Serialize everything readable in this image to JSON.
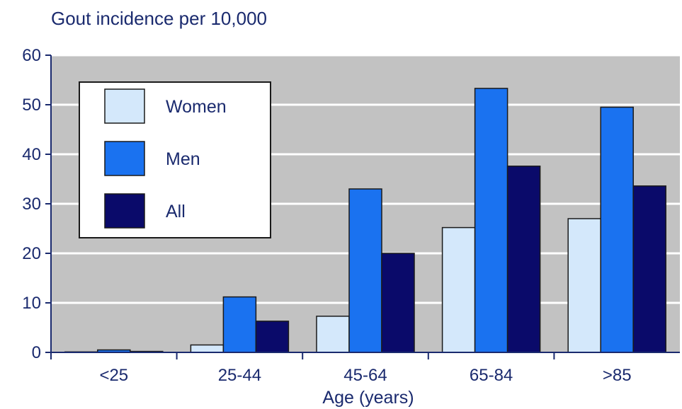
{
  "chart_data": {
    "type": "bar",
    "title": "Gout incidence per 10,000",
    "xlabel": "Age (years)",
    "ylabel": "",
    "ylim": [
      0,
      60
    ],
    "yticks": [
      0,
      10,
      20,
      30,
      40,
      50,
      60
    ],
    "categories": [
      "<25",
      "25-44",
      "45-64",
      "65-84",
      ">85"
    ],
    "series": [
      {
        "name": "Women",
        "color": "#d4e8fb",
        "values": [
          0.1,
          1.5,
          7.3,
          25.2,
          27.0
        ]
      },
      {
        "name": "Men",
        "color": "#1a72f0",
        "values": [
          0.5,
          11.2,
          33.0,
          53.3,
          49.5
        ]
      },
      {
        "name": "All",
        "color": "#0a0a6a",
        "values": [
          0.2,
          6.3,
          20.0,
          37.6,
          33.6
        ]
      }
    ],
    "legend_position": "top-left",
    "grid": true,
    "plot_background": "#c2c2c2",
    "grid_color": "#ffffff"
  }
}
